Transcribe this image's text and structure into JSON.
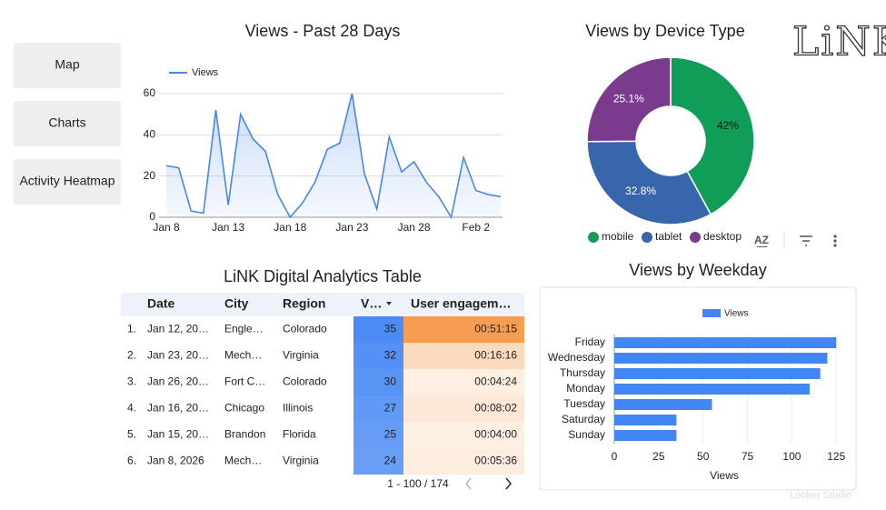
{
  "nav": [
    "Map",
    "Charts",
    "Activity Heatmap"
  ],
  "logo": "LiNK",
  "watermark": "Looker Studio",
  "chart_data": [
    {
      "type": "line",
      "title": "Views - Past 28 Days",
      "categories": [
        "Jan 8",
        null,
        null,
        null,
        null,
        "Jan 13",
        null,
        null,
        null,
        null,
        "Jan 18",
        null,
        null,
        null,
        null,
        "Jan 23",
        null,
        null,
        null,
        null,
        "Jan 28",
        null,
        null,
        null,
        null,
        "Feb 2",
        null,
        null
      ],
      "series": [
        {
          "name": "Views",
          "color": "#4a86e8",
          "values": [
            25,
            24,
            3,
            2,
            52,
            6,
            50,
            38,
            32,
            11,
            0,
            7,
            17,
            33,
            36,
            60,
            21,
            4,
            39,
            22,
            27,
            17,
            10,
            0,
            29,
            13,
            11,
            10
          ]
        }
      ],
      "ylim": [
        0,
        60
      ],
      "yticks": [
        0,
        20,
        40,
        60
      ],
      "grid": true,
      "legend": "top-left"
    },
    {
      "type": "pie",
      "title": "Views by Device Type",
      "donut": true,
      "categories": [
        "mobile",
        "tablet",
        "desktop"
      ],
      "values": [
        42,
        32.8,
        25.1
      ],
      "value_labels": [
        "42%",
        "32.8%",
        "25.1%"
      ],
      "colors": [
        "#0f9d58",
        "#3766ad",
        "#7b3b8d"
      ],
      "legend": "bottom"
    },
    {
      "type": "hbar",
      "title": "Views by Weekday",
      "x_label": "Views",
      "categories": [
        "Friday",
        "Wednesday",
        "Thursday",
        "Monday",
        "Tuesday",
        "Saturday",
        "Sunday"
      ],
      "series": [
        {
          "name": "Views",
          "color": "#4285f4",
          "values": [
            125,
            120,
            116,
            110,
            55,
            35,
            35
          ]
        }
      ],
      "xlim": [
        0,
        131
      ],
      "xticks": [
        0,
        25,
        50,
        75,
        100,
        125
      ],
      "grid": true,
      "legend": "top"
    }
  ],
  "table": {
    "title": "LiNK Digital Analytics Table",
    "columns": [
      "Date",
      "City",
      "Region",
      "V…",
      "User engagem…"
    ],
    "rows": [
      [
        "1.",
        "Jan 12, 20…",
        "Engle…",
        "Colorado",
        35,
        "00:51:15"
      ],
      [
        "2.",
        "Jan 23, 20…",
        "Mech…",
        "Virginia",
        32,
        "00:16:16"
      ],
      [
        "3.",
        "Jan 26, 20…",
        "Fort C…",
        "Colorado",
        30,
        "00:04:24"
      ],
      [
        "4.",
        "Jan 16, 20…",
        "Chicago",
        "Illinois",
        27,
        "00:08:02"
      ],
      [
        "5.",
        "Jan 15, 20…",
        "Brandon",
        "Florida",
        25,
        "00:04:00"
      ],
      [
        "6.",
        "Jan 8, 2026",
        "Mech…",
        "Virginia",
        24,
        "00:05:36"
      ]
    ],
    "pagination": "1 - 100 / 174"
  }
}
